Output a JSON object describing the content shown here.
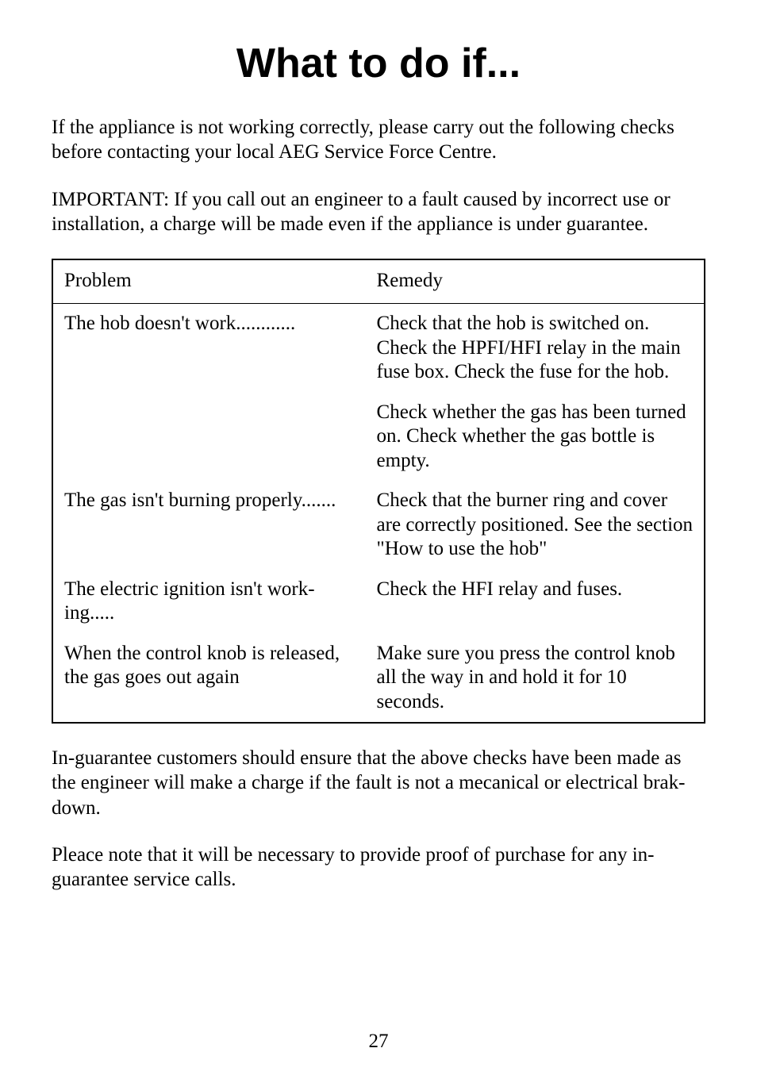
{
  "title": "What to do if...",
  "intro_para": "If the appliance is not working correctly, please carry out the following checks before contacting your local AEG Service Force Centre.",
  "important_para": "IMPORTANT: If you call out an engineer to a fault caused by incorrect use or installation, a charge will be made even if the appliance is under guarantee.",
  "table": {
    "header_problem": "Problem",
    "header_remedy": "Remedy",
    "rows": [
      {
        "problem": "The hob doesn't work............",
        "remedy": "Check that the hob is switched on. Check the HPFI/HFI relay in the main fuse box. Check the fuse for the hob."
      },
      {
        "problem": "",
        "remedy": "Check whether the gas has been turned on. Check whether the gas bottle is empty."
      },
      {
        "problem": "The gas isn't burning properly.......",
        "remedy": "Check that the burner ring and cover are correctly positioned. See the section \"How to use the hob\""
      },
      {
        "problem": "The electric ignition isn't work-ing.....",
        "remedy": "Check the HFI relay and fuses."
      },
      {
        "problem": "When the control knob is released, the gas goes out again",
        "remedy": "Make sure you press the control knob all the way in and hold it for 10 seconds."
      }
    ]
  },
  "guarantee_para": "In-guarantee customers should ensure that the above checks have been made as the engineer will make a charge if the fault is not a mecanical or electrical brak-down.",
  "proof_para": "Pleace note that it will be necessary to provide proof of purchase for any in-guarantee service calls.",
  "page_number": "27"
}
